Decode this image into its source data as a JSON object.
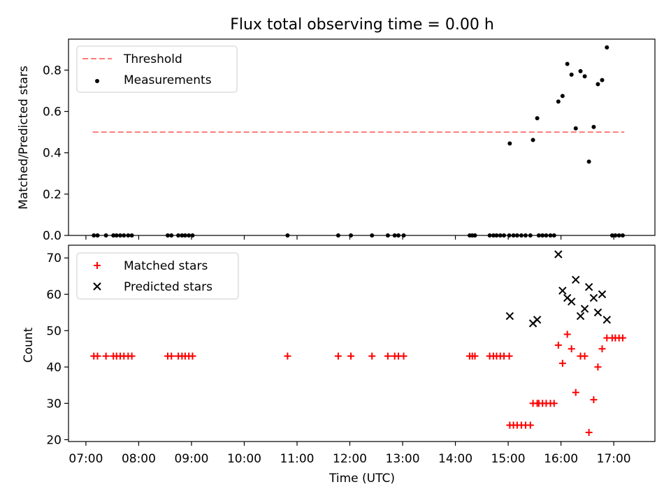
{
  "chart_data": [
    {
      "type": "scatter",
      "title": "Flux total observing time = 0.00 h",
      "ylabel": "Matched/Predicted stars",
      "xlabel": "",
      "xlim": [
        6.67,
        17.78
      ],
      "ylim": [
        0,
        0.95
      ],
      "y_ticks": [
        0.0,
        0.2,
        0.4,
        0.6,
        0.8
      ],
      "y_tick_labels": [
        "0.0",
        "0.2",
        "0.4",
        "0.6",
        "0.8"
      ],
      "legend_position": "top-left",
      "threshold": {
        "name": "Threshold",
        "y": 0.5,
        "x_range": [
          7.13,
          17.2
        ],
        "color": "#ff7b7b"
      },
      "series": [
        {
          "name": "Measurements",
          "marker": "dot",
          "color": "#000000",
          "points": [
            [
              7.15,
              0
            ],
            [
              7.22,
              0
            ],
            [
              7.38,
              0
            ],
            [
              7.52,
              0
            ],
            [
              7.58,
              0
            ],
            [
              7.65,
              0
            ],
            [
              7.72,
              0
            ],
            [
              7.8,
              0
            ],
            [
              7.87,
              0
            ],
            [
              8.55,
              0
            ],
            [
              8.62,
              0
            ],
            [
              8.75,
              0
            ],
            [
              8.82,
              0
            ],
            [
              8.88,
              0
            ],
            [
              8.95,
              0
            ],
            [
              9.02,
              0
            ],
            [
              10.82,
              0
            ],
            [
              11.78,
              0
            ],
            [
              12.02,
              0
            ],
            [
              12.42,
              0
            ],
            [
              12.72,
              0
            ],
            [
              12.85,
              0
            ],
            [
              12.92,
              0
            ],
            [
              13.02,
              0
            ],
            [
              14.27,
              0
            ],
            [
              14.32,
              0
            ],
            [
              14.37,
              0
            ],
            [
              14.65,
              0
            ],
            [
              14.72,
              0
            ],
            [
              14.78,
              0
            ],
            [
              14.85,
              0
            ],
            [
              14.92,
              0
            ],
            [
              15.02,
              0
            ],
            [
              15.1,
              0
            ],
            [
              15.17,
              0
            ],
            [
              15.25,
              0
            ],
            [
              15.33,
              0
            ],
            [
              15.42,
              0
            ],
            [
              15.58,
              0
            ],
            [
              15.65,
              0
            ],
            [
              15.72,
              0
            ],
            [
              15.8,
              0
            ],
            [
              15.87,
              0
            ],
            [
              16.97,
              0
            ],
            [
              17.03,
              0
            ],
            [
              17.1,
              0
            ],
            [
              17.17,
              0
            ],
            [
              15.03,
              0.445
            ],
            [
              15.47,
              0.462
            ],
            [
              15.55,
              0.567
            ],
            [
              15.95,
              0.648
            ],
            [
              16.03,
              0.675
            ],
            [
              16.12,
              0.83
            ],
            [
              16.2,
              0.778
            ],
            [
              16.28,
              0.518
            ],
            [
              16.37,
              0.795
            ],
            [
              16.45,
              0.77
            ],
            [
              16.53,
              0.357
            ],
            [
              16.62,
              0.525
            ],
            [
              16.7,
              0.732
            ],
            [
              16.78,
              0.752
            ],
            [
              16.87,
              0.91
            ]
          ]
        }
      ]
    },
    {
      "type": "scatter",
      "title": "",
      "xlabel": "Time (UTC)",
      "ylabel": "Count",
      "xlim": [
        6.67,
        17.78
      ],
      "ylim": [
        19.5,
        73.5
      ],
      "x_ticks": [
        7,
        8,
        9,
        10,
        11,
        12,
        13,
        14,
        15,
        16,
        17
      ],
      "x_tick_labels": [
        "07:00",
        "08:00",
        "09:00",
        "10:00",
        "11:00",
        "12:00",
        "13:00",
        "14:00",
        "15:00",
        "16:00",
        "17:00"
      ],
      "y_ticks": [
        20,
        30,
        40,
        50,
        60,
        70
      ],
      "y_tick_labels": [
        "20",
        "30",
        "40",
        "50",
        "60",
        "70"
      ],
      "legend_position": "top-left",
      "series": [
        {
          "name": "Matched stars",
          "marker": "plus",
          "color": "#ff0000",
          "points": [
            [
              7.15,
              43
            ],
            [
              7.22,
              43
            ],
            [
              7.38,
              43
            ],
            [
              7.52,
              43
            ],
            [
              7.58,
              43
            ],
            [
              7.65,
              43
            ],
            [
              7.72,
              43
            ],
            [
              7.8,
              43
            ],
            [
              7.87,
              43
            ],
            [
              8.55,
              43
            ],
            [
              8.62,
              43
            ],
            [
              8.75,
              43
            ],
            [
              8.82,
              43
            ],
            [
              8.88,
              43
            ],
            [
              8.95,
              43
            ],
            [
              9.02,
              43
            ],
            [
              10.82,
              43
            ],
            [
              11.78,
              43
            ],
            [
              12.02,
              43
            ],
            [
              12.42,
              43
            ],
            [
              12.72,
              43
            ],
            [
              12.85,
              43
            ],
            [
              12.92,
              43
            ],
            [
              13.02,
              43
            ],
            [
              14.27,
              43
            ],
            [
              14.32,
              43
            ],
            [
              14.37,
              43
            ],
            [
              14.65,
              43
            ],
            [
              14.72,
              43
            ],
            [
              14.78,
              43
            ],
            [
              14.85,
              43
            ],
            [
              14.92,
              43
            ],
            [
              15.02,
              43
            ],
            [
              15.03,
              24
            ],
            [
              15.1,
              24
            ],
            [
              15.17,
              24
            ],
            [
              15.25,
              24
            ],
            [
              15.33,
              24
            ],
            [
              15.42,
              24
            ],
            [
              15.47,
              30
            ],
            [
              15.55,
              30
            ],
            [
              15.58,
              30
            ],
            [
              15.65,
              30
            ],
            [
              15.72,
              30
            ],
            [
              15.8,
              30
            ],
            [
              15.87,
              30
            ],
            [
              15.95,
              46
            ],
            [
              16.03,
              41
            ],
            [
              16.12,
              49
            ],
            [
              16.2,
              45
            ],
            [
              16.28,
              33
            ],
            [
              16.37,
              43
            ],
            [
              16.45,
              43
            ],
            [
              16.53,
              22
            ],
            [
              16.62,
              31
            ],
            [
              16.7,
              40
            ],
            [
              16.78,
              45
            ],
            [
              16.87,
              48
            ],
            [
              16.97,
              48
            ],
            [
              17.03,
              48
            ],
            [
              17.1,
              48
            ],
            [
              17.17,
              48
            ]
          ]
        },
        {
          "name": "Predicted stars",
          "marker": "x",
          "color": "#000000",
          "points": [
            [
              15.03,
              54
            ],
            [
              15.47,
              52
            ],
            [
              15.55,
              53
            ],
            [
              15.95,
              71
            ],
            [
              16.03,
              61
            ],
            [
              16.12,
              59
            ],
            [
              16.2,
              58
            ],
            [
              16.28,
              64
            ],
            [
              16.37,
              54
            ],
            [
              16.45,
              56
            ],
            [
              16.53,
              62
            ],
            [
              16.62,
              59
            ],
            [
              16.7,
              55
            ],
            [
              16.78,
              60
            ],
            [
              16.87,
              53
            ]
          ]
        }
      ]
    }
  ]
}
